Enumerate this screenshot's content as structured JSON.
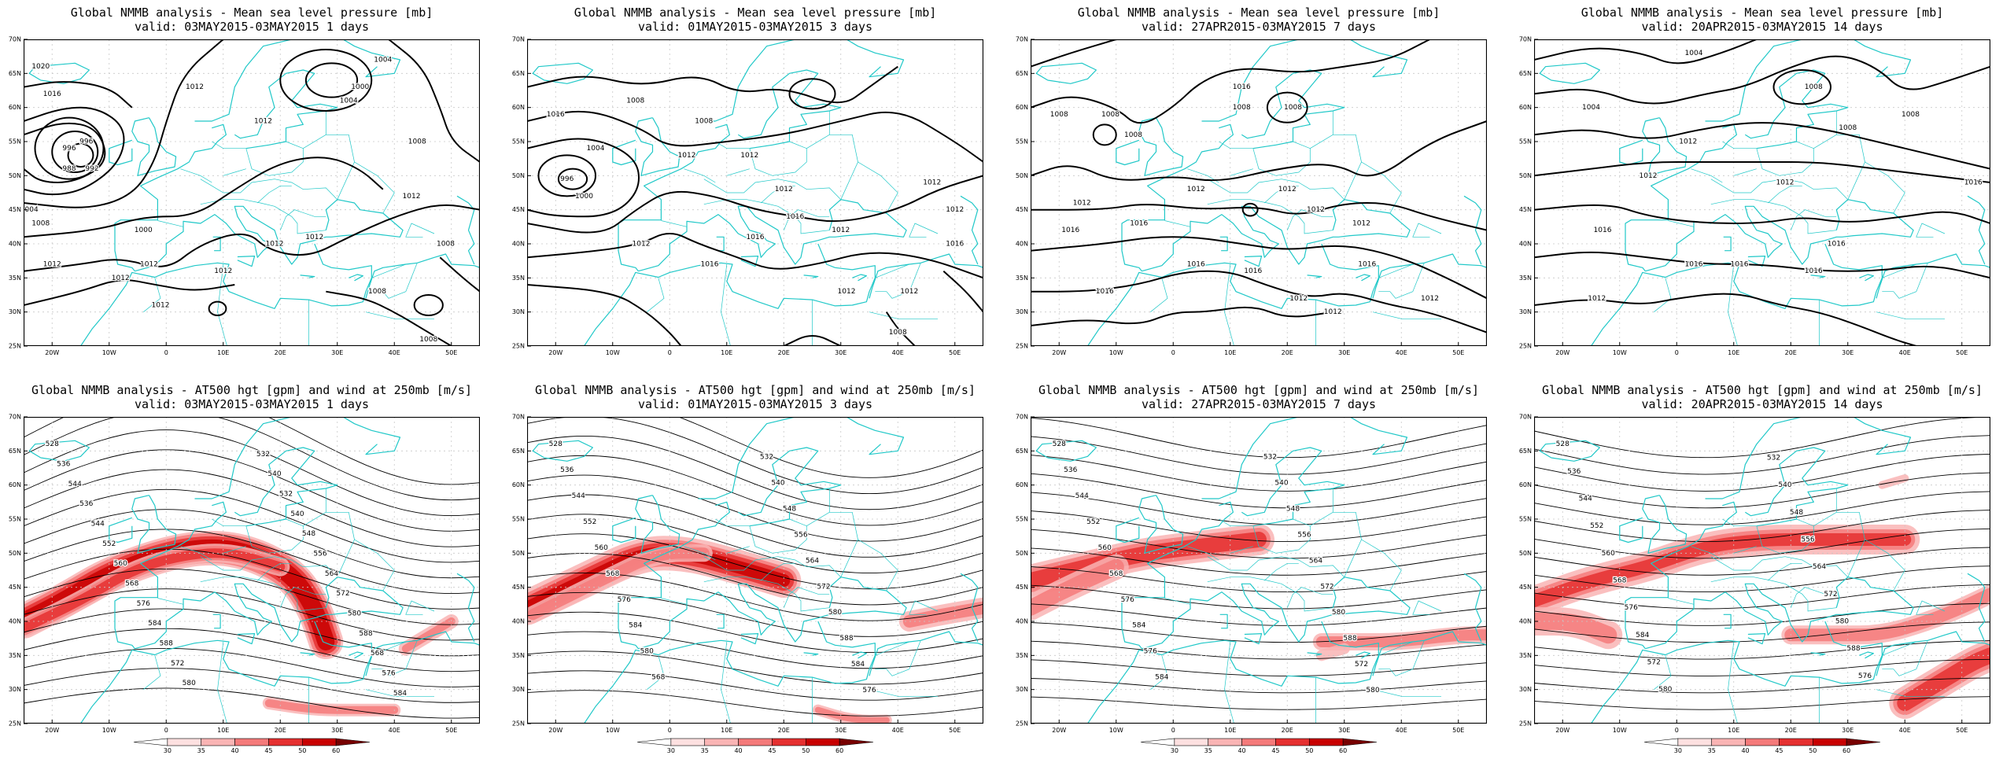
{
  "figure": {
    "panels": [
      {
        "row": 0,
        "col": 0,
        "variable": "mslp",
        "title": "Global NMMB analysis - Mean sea level pressure [mb]",
        "subtitle": "valid: 03MAY2015-03MAY2015   1 days",
        "contour_labels": [
          "1020",
          "1016",
          "1012",
          "1012",
          "1004",
          "1000",
          "1004",
          "1008",
          "996",
          "996",
          "992",
          "988",
          "1004",
          "1008",
          "1012",
          "1012",
          "1012",
          "1012",
          "1012",
          "1012",
          "1008",
          "1012",
          "1008",
          "1008",
          "1012",
          "1000"
        ]
      },
      {
        "row": 0,
        "col": 1,
        "variable": "mslp",
        "title": "Global NMMB analysis - Mean sea level pressure [mb]",
        "subtitle": "valid: 01MAY2015-03MAY2015   3 days",
        "contour_labels": [
          "1016",
          "1008",
          "1008",
          "1012",
          "1012",
          "1004",
          "1000",
          "996",
          "1012",
          "1012",
          "1016",
          "1016",
          "1012",
          "1016",
          "1012",
          "1012",
          "1012",
          "1012",
          "1008",
          "1016"
        ]
      },
      {
        "row": 0,
        "col": 2,
        "variable": "mslp",
        "title": "Global NMMB analysis - Mean sea level pressure [mb]",
        "subtitle": "valid: 27APR2015-03MAY2015   7 days",
        "contour_labels": [
          "1008",
          "1016",
          "1008",
          "1008",
          "1008",
          "1008",
          "1012",
          "1012",
          "1012",
          "1012",
          "1012",
          "1016",
          "1016",
          "1016",
          "1016",
          "1016",
          "1012",
          "1012",
          "1016",
          "1012"
        ]
      },
      {
        "row": 0,
        "col": 3,
        "variable": "mslp",
        "title": "Global NMMB analysis - Mean sea level pressure [mb]",
        "subtitle": "valid: 20APR2015-03MAY2015   14 days",
        "contour_labels": [
          "1004",
          "1004",
          "1008",
          "1008",
          "1008",
          "1012",
          "1012",
          "1012",
          "1016",
          "1016",
          "1016",
          "1016",
          "1016",
          "1016",
          "1012"
        ]
      },
      {
        "row": 1,
        "col": 0,
        "variable": "z500_wind250",
        "title": "Global NMMB analysis - AT500 hgt [gpm] and wind at 250mb [m/s]",
        "subtitle": "valid: 03MAY2015-03MAY2015   1 days",
        "contour_labels": [
          "528",
          "532",
          "536",
          "540",
          "544",
          "532",
          "536",
          "540",
          "544",
          "548",
          "552",
          "556",
          "560",
          "564",
          "568",
          "572",
          "576",
          "580",
          "584",
          "588",
          "588",
          "568",
          "572",
          "576",
          "580",
          "584"
        ]
      },
      {
        "row": 1,
        "col": 1,
        "variable": "z500_wind250",
        "title": "Global NMMB analysis - AT500 hgt [gpm] and wind at 250mb [m/s]",
        "subtitle": "valid: 01MAY2015-03MAY2015   3 days",
        "contour_labels": [
          "528",
          "532",
          "536",
          "540",
          "544",
          "548",
          "552",
          "556",
          "560",
          "564",
          "568",
          "572",
          "576",
          "580",
          "584",
          "588",
          "580",
          "584",
          "568",
          "576"
        ]
      },
      {
        "row": 1,
        "col": 2,
        "variable": "z500_wind250",
        "title": "Global NMMB analysis - AT500 hgt [gpm] and wind at 250mb [m/s]",
        "subtitle": "valid: 27APR2015-03MAY2015   7 days",
        "contour_labels": [
          "528",
          "532",
          "536",
          "540",
          "544",
          "548",
          "552",
          "556",
          "560",
          "564",
          "568",
          "572",
          "576",
          "580",
          "584",
          "588",
          "576",
          "572",
          "584",
          "580"
        ]
      },
      {
        "row": 1,
        "col": 3,
        "variable": "z500_wind250",
        "title": "Global NMMB analysis - AT500 hgt [gpm] and wind at 250mb [m/s]",
        "subtitle": "valid: 20APR2015-03MAY2015   14 days",
        "contour_labels": [
          "528",
          "532",
          "536",
          "540",
          "544",
          "548",
          "552",
          "556",
          "560",
          "564",
          "568",
          "572",
          "576",
          "580",
          "584",
          "588",
          "572",
          "576",
          "580"
        ]
      }
    ],
    "lat_ticks": [
      "70N",
      "65N",
      "60N",
      "55N",
      "50N",
      "45N",
      "40N",
      "35N",
      "30N",
      "25N"
    ],
    "lon_ticks": [
      "20W",
      "10W",
      "0",
      "10E",
      "20E",
      "30E",
      "40E",
      "50E"
    ],
    "colorbar": {
      "ticks": [
        "30",
        "35",
        "40",
        "45",
        "50",
        "60"
      ],
      "colors": [
        "#ffffff",
        "#fde0e0",
        "#f9b4b4",
        "#f47a7a",
        "#e53030",
        "#c80000",
        "#780000"
      ]
    },
    "colors": {
      "coast": "#20c8c8",
      "contour": "#000000",
      "grid": "#c8c8c8"
    }
  }
}
